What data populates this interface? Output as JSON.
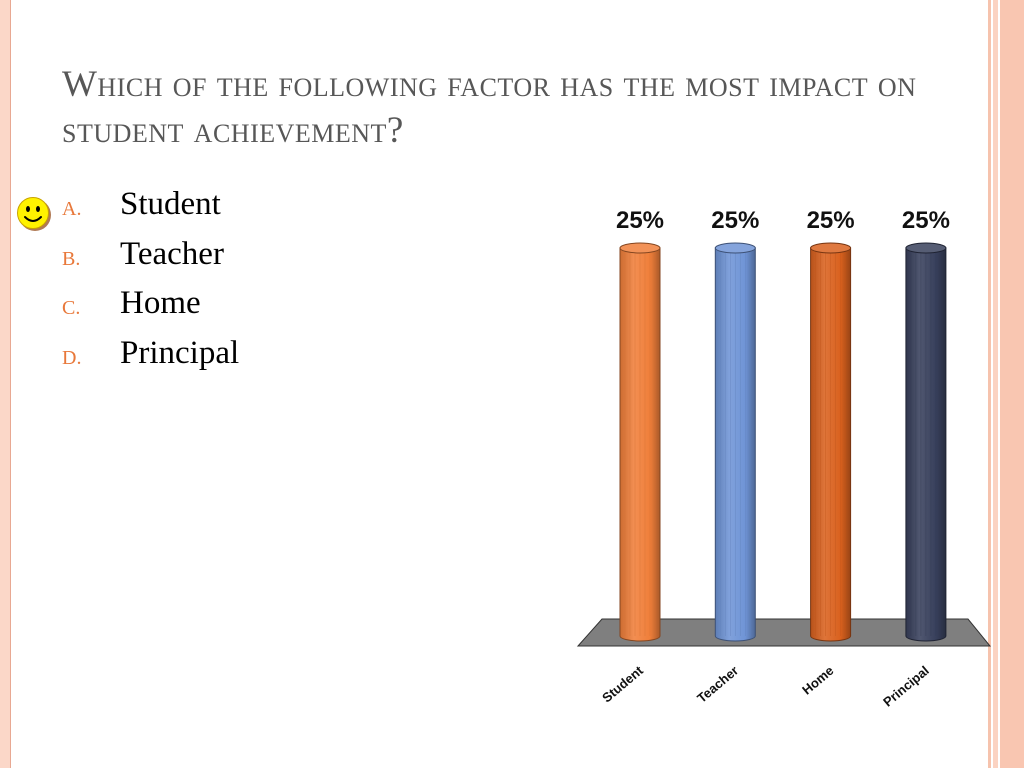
{
  "slide": {
    "title": "Which of the following factor has the most impact on student achievement?"
  },
  "options": [
    {
      "letter": "A.",
      "label": "Student"
    },
    {
      "letter": "B.",
      "label": "Teacher"
    },
    {
      "letter": "C.",
      "label": "Home"
    },
    {
      "letter": "D.",
      "label": "Principal"
    }
  ],
  "correct_marker": {
    "icon": "smiley-icon",
    "option_index": 0
  },
  "chart_data": {
    "type": "bar",
    "categories": [
      "Student",
      "Teacher",
      "Home",
      "Principal"
    ],
    "values": [
      25,
      25,
      25,
      25
    ],
    "data_labels": [
      "25%",
      "25%",
      "25%",
      "25%"
    ],
    "colors": [
      "#f07f3a",
      "#6f94d6",
      "#d9611e",
      "#38405c"
    ],
    "ylim": [
      0,
      25
    ],
    "grid": false,
    "legend": "none",
    "title": "",
    "xlabel": "",
    "ylabel": ""
  }
}
